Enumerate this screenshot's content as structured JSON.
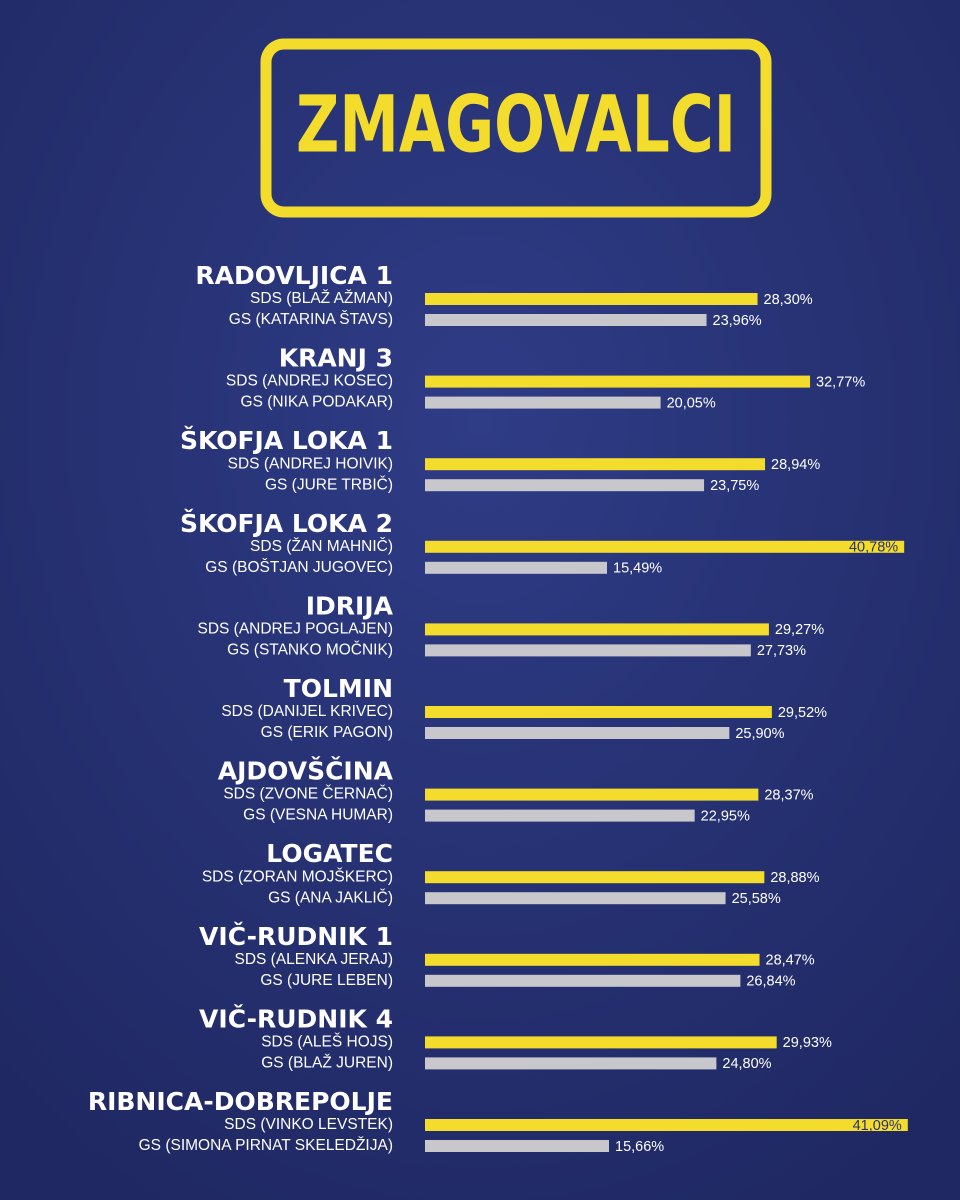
{
  "title": "ZMAGOVALCI",
  "districts": [
    {
      "name": "RADOVLJICA 1",
      "candidates": [
        {
          "label": "SDS (BLAŽ AŽMAN)",
          "value": 28.3,
          "value_label": "28,30%"
        },
        {
          "label": "GS (KATARINA ŠTAVS)",
          "value": 23.96,
          "value_label": "23,96%"
        }
      ]
    },
    {
      "name": "KRANJ 3",
      "candidates": [
        {
          "label": "SDS (ANDREJ KOSEC)",
          "value": 32.77,
          "value_label": "32,77%"
        },
        {
          "label": "GS (NIKA PODAKAR)",
          "value": 20.05,
          "value_label": "20,05%"
        }
      ]
    },
    {
      "name": "ŠKOFJA LOKA 1",
      "candidates": [
        {
          "label": "SDS (ANDREJ HOIVIK)",
          "value": 28.94,
          "value_label": "28,94%"
        },
        {
          "label": "GS (JURE TRBIČ)",
          "value": 23.75,
          "value_label": "23,75%"
        }
      ]
    },
    {
      "name": "ŠKOFJA LOKA 2",
      "candidates": [
        {
          "label": "SDS (ŽAN MAHNIČ)",
          "value": 40.78,
          "value_label": "40,78%"
        },
        {
          "label": "GS (BOŠTJAN JUGOVEC)",
          "value": 15.49,
          "value_label": "15,49%"
        }
      ]
    },
    {
      "name": "IDRIJA",
      "candidates": [
        {
          "label": "SDS (ANDREJ POGLAJEN)",
          "value": 29.27,
          "value_label": "29,27%"
        },
        {
          "label": "GS (STANKO MOČNIK)",
          "value": 27.73,
          "value_label": "27,73%"
        }
      ]
    },
    {
      "name": "TOLMIN",
      "candidates": [
        {
          "label": "SDS (DANIJEL KRIVEC)",
          "value": 29.52,
          "value_label": "29,52%"
        },
        {
          "label": "GS (ERIK PAGON)",
          "value": 25.9,
          "value_label": "25,90%"
        }
      ]
    },
    {
      "name": "AJDOVŠČINA",
      "candidates": [
        {
          "label": "SDS (ZVONE ČERNAČ)",
          "value": 28.37,
          "value_label": "28,37%"
        },
        {
          "label": "GS (VESNA HUMAR)",
          "value": 22.95,
          "value_label": "22,95%"
        }
      ]
    },
    {
      "name": "LOGATEC",
      "candidates": [
        {
          "label": "SDS (ZORAN MOJŠKERC)",
          "value": 28.88,
          "value_label": "28,88%"
        },
        {
          "label": "GS (ANA JAKLIČ)",
          "value": 25.58,
          "value_label": "25,58%"
        }
      ]
    },
    {
      "name": "VIČ-RUDNIK 1",
      "candidates": [
        {
          "label": "SDS (ALENKA JERAJ)",
          "value": 28.47,
          "value_label": "28,47%"
        },
        {
          "label": "GS (JURE LEBEN)",
          "value": 26.84,
          "value_label": "26,84%"
        }
      ]
    },
    {
      "name": "VIČ-RUDNIK 4",
      "candidates": [
        {
          "label": "SDS (ALEŠ HOJS)",
          "value": 29.93,
          "value_label": "29,93%"
        },
        {
          "label": "GS (BLAŽ JUREN)",
          "value": 24.8,
          "value_label": "24,80%"
        }
      ]
    },
    {
      "name": "RIBNICA-DOBREPOLJE",
      "candidates": [
        {
          "label": "SDS (VINKO LEVSTEK)",
          "value": 41.09,
          "value_label": "41,09%"
        },
        {
          "label": "GS (SIMONA PIRNAT SKELEDŽIJA)",
          "value": 15.66,
          "value_label": "15,66%"
        }
      ]
    }
  ]
}
